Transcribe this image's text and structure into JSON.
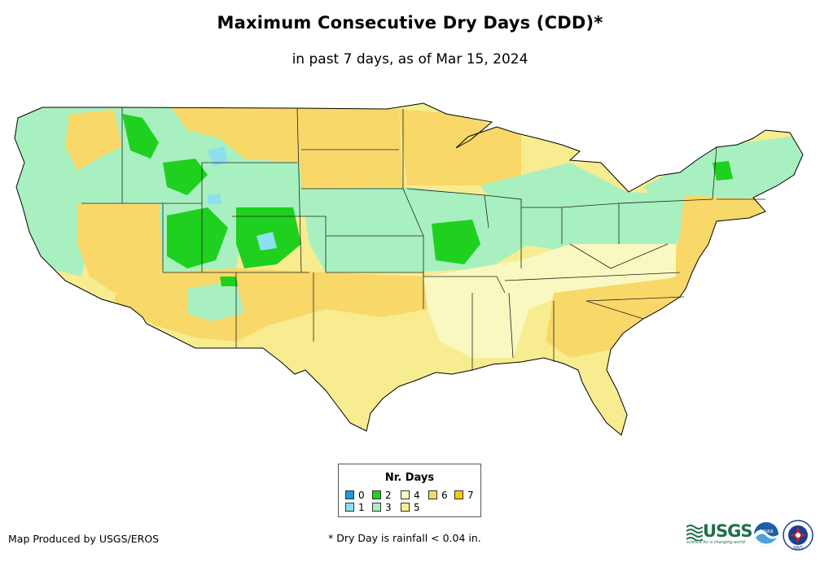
{
  "title": "Maximum Consecutive Dry Days (CDD)*",
  "subtitle": "in past 7 days, as of Mar 15, 2024",
  "legend": {
    "title": "Nr. Days",
    "items": [
      {
        "label": "0",
        "color": "#1a9bdc"
      },
      {
        "label": "1",
        "color": "#8ce0f0"
      },
      {
        "label": "2",
        "color": "#1fd01f"
      },
      {
        "label": "3",
        "color": "#a8f0c0"
      },
      {
        "label": "4",
        "color": "#f8f8c0"
      },
      {
        "label": "5",
        "color": "#f8ec90"
      },
      {
        "label": "6",
        "color": "#f8d868"
      },
      {
        "label": "7",
        "color": "#f8c800"
      }
    ]
  },
  "credit": "Map Produced by USGS/EROS",
  "footnote": "* Dry Day is rainfall < 0.04 in.",
  "logos": {
    "usgs": "USGS",
    "usgs_tagline": "science for a changing world",
    "noaa": "noaa",
    "nws": "NWS"
  },
  "region_colors": {
    "west_coast": "#a8f0c0",
    "northwest_interior": "#f8d868",
    "rockies": "#a8f0c0",
    "wet_spots": "#1fd01f",
    "snow_spots": "#8ce0f0",
    "southwest": "#f8d868",
    "plains_north": "#f8d868",
    "plains_central": "#a8f0c0",
    "texas": "#f8ec90",
    "south_central": "#f8f8c0",
    "southeast": "#f8ec90",
    "great_lakes": "#a8f0c0",
    "northeast": "#a8f0c0",
    "mid_atlantic": "#f8d868"
  }
}
